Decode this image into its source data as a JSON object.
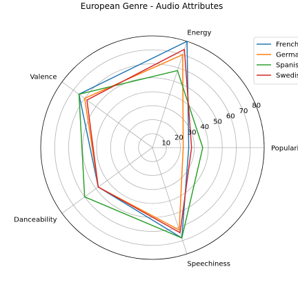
{
  "chart_data": {
    "type": "radar",
    "title": "European Genre - Audio Attributes",
    "axes": [
      "Popularity",
      "Energy",
      "Valence",
      "Danceability",
      "Speechiness"
    ],
    "rlim": [
      0,
      80
    ],
    "rticks": [
      10,
      20,
      30,
      40,
      50,
      60,
      70,
      80
    ],
    "rtick_labels": [
      "10",
      "20",
      "30",
      "40",
      "50",
      "60",
      "70",
      "80"
    ],
    "grid": true,
    "legend_position": "top-right",
    "series": [
      {
        "name": "French",
        "color": "#1f77b4",
        "values": [
          26,
          80,
          65,
          48,
          68
        ]
      },
      {
        "name": "German",
        "color": "#ff7f0e",
        "values": [
          22,
          70,
          60,
          48,
          62
        ]
      },
      {
        "name": "Spanish",
        "color": "#2ca02c",
        "values": [
          36,
          58,
          65,
          60,
          68
        ]
      },
      {
        "name": "Swedish",
        "color": "#d62728",
        "values": [
          28,
          74,
          58,
          48,
          64
        ]
      }
    ]
  }
}
